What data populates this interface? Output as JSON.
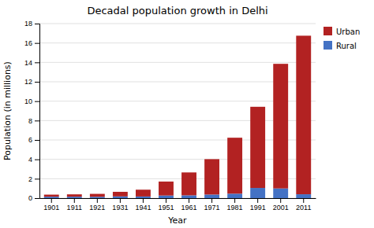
{
  "chart_data": {
    "type": "bar",
    "stacked": true,
    "title": "Decadal population growth in Delhi",
    "xlabel": "Year",
    "ylabel": "Population (in millions)",
    "categories": [
      "1901",
      "1911",
      "1921",
      "1931",
      "1941",
      "1951",
      "1961",
      "1971",
      "1981",
      "1991",
      "2001",
      "2011"
    ],
    "series": [
      {
        "name": "Rural",
        "color": "#4472c4",
        "values": [
          0.15,
          0.15,
          0.14,
          0.18,
          0.17,
          0.27,
          0.29,
          0.37,
          0.46,
          1.05,
          1.0,
          0.4
        ]
      },
      {
        "name": "Urban",
        "color": "#b22222",
        "values": [
          0.21,
          0.24,
          0.3,
          0.47,
          0.7,
          1.44,
          2.36,
          3.65,
          5.77,
          8.37,
          12.85,
          16.35
        ]
      }
    ],
    "ylim": [
      0,
      18
    ],
    "yticks": [
      0,
      2,
      4,
      6,
      8,
      10,
      12,
      14,
      16,
      18
    ],
    "grid": true,
    "legend": "upper right"
  }
}
